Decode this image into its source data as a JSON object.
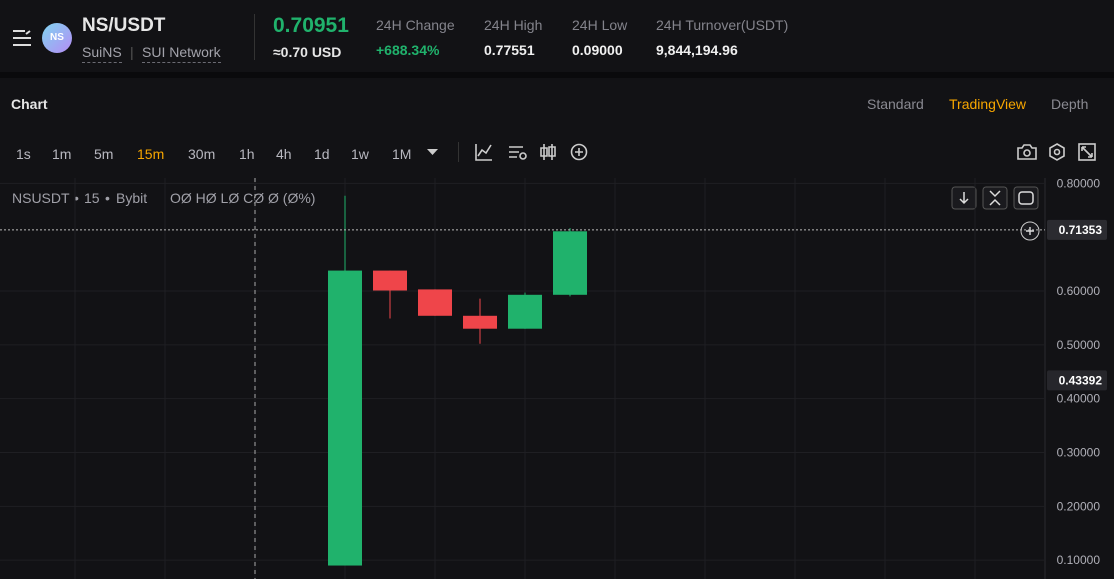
{
  "header": {
    "symbol": "NS/USDT",
    "tags": [
      "SuiNS",
      "SUI Network"
    ],
    "price": "0.70951",
    "price_usd": "≈0.70 USD",
    "stats": [
      {
        "label": "24H Change",
        "value": "+688.34%"
      },
      {
        "label": "24H High",
        "value": "0.77551"
      },
      {
        "label": "24H Low",
        "value": "0.09000"
      },
      {
        "label": "24H Turnover(USDT)",
        "value": "9,844,194.96"
      }
    ]
  },
  "tabs": {
    "title": "Chart",
    "views": [
      "Standard",
      "TradingView",
      "Depth"
    ],
    "active": 1
  },
  "intervals": {
    "items": [
      "1s",
      "1m",
      "5m",
      "15m",
      "30m",
      "1h",
      "4h",
      "1d",
      "1w",
      "1M"
    ],
    "active": 3
  },
  "chart_data": {
    "type": "candlestick",
    "legend": {
      "symbol": "NSUSDT",
      "interval": "15",
      "exchange": "Bybit",
      "ohlc": "OØ HØ LØ CØ Ø (Ø%)"
    },
    "categories": [
      null,
      null,
      null,
      null,
      null,
      null
    ],
    "open": [
      0.09,
      0.638,
      0.603,
      0.554,
      0.53,
      0.593
    ],
    "high": [
      0.777,
      0.638,
      0.603,
      0.586,
      0.597,
      0.717
    ],
    "low": [
      0.09,
      0.549,
      0.554,
      0.502,
      0.53,
      0.59
    ],
    "close": [
      0.638,
      0.601,
      0.554,
      0.53,
      0.593,
      0.711
    ],
    "up_color": "#20b26c",
    "down_color": "#ef454a",
    "ylim": [
      0.065,
      0.81
    ],
    "yticks": [
      {
        "value": 0.8,
        "label": "0.80000"
      },
      {
        "value": 0.6,
        "label": "0.60000"
      },
      {
        "value": 0.5,
        "label": "0.50000"
      },
      {
        "value": 0.4,
        "label": "0.40000"
      },
      {
        "value": 0.3,
        "label": "0.30000"
      },
      {
        "value": 0.2,
        "label": "0.20000"
      },
      {
        "value": 0.1,
        "label": "0.10000"
      }
    ],
    "price_lines": [
      0.71353,
      0.43392
    ],
    "grid": true
  }
}
